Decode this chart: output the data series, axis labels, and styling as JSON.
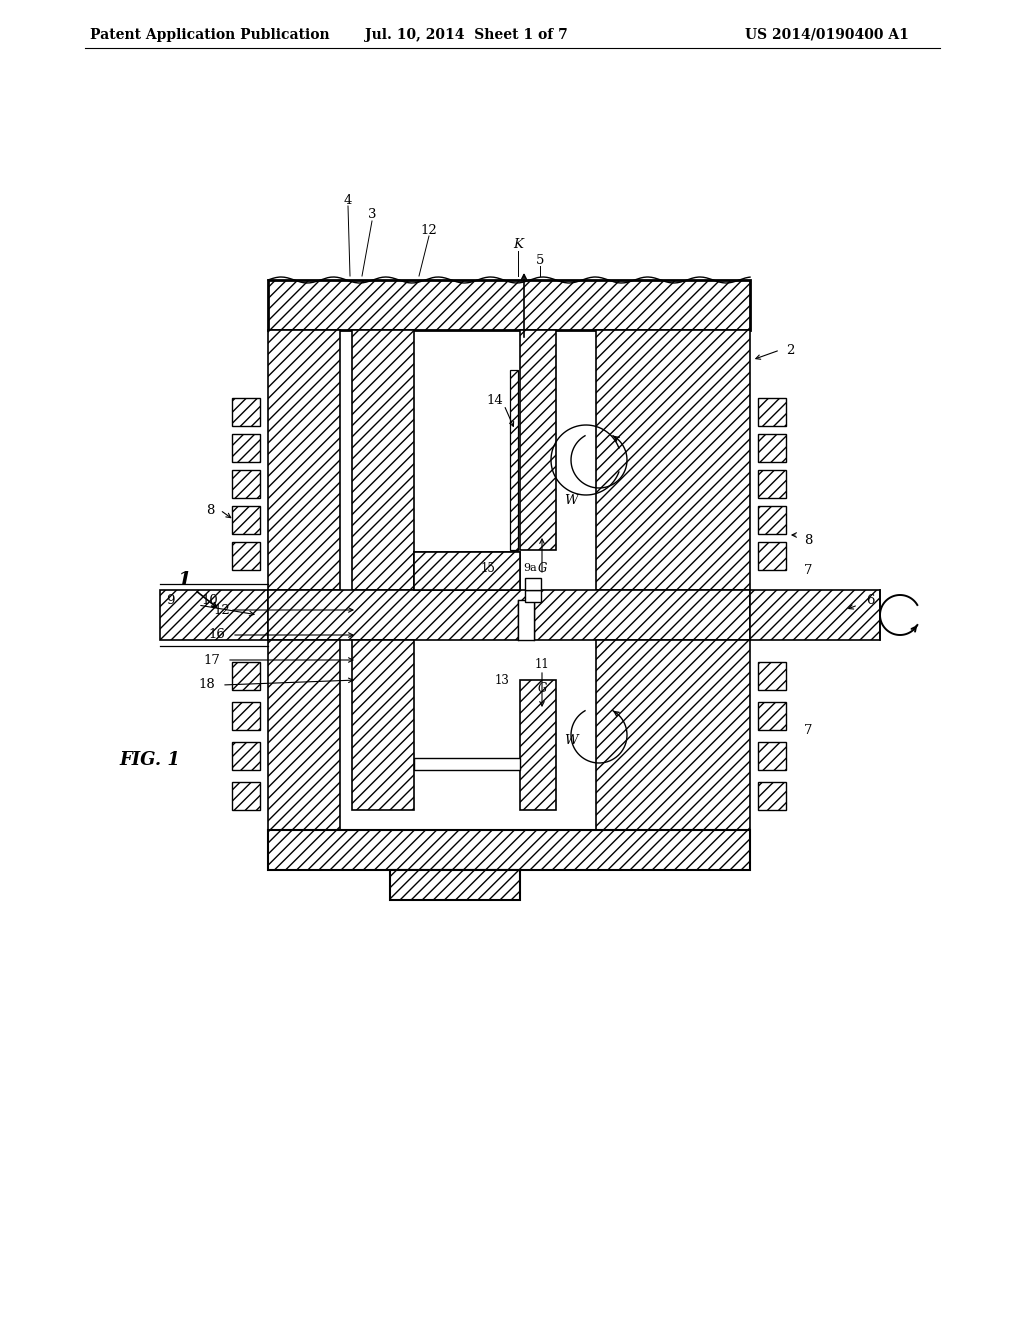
{
  "header_left": "Patent Application Publication",
  "header_mid": "Jul. 10, 2014  Sheet 1 of 7",
  "header_right": "US 2014/0190400 A1",
  "fig_label": "FIG. 1",
  "bg": "#ffffff"
}
